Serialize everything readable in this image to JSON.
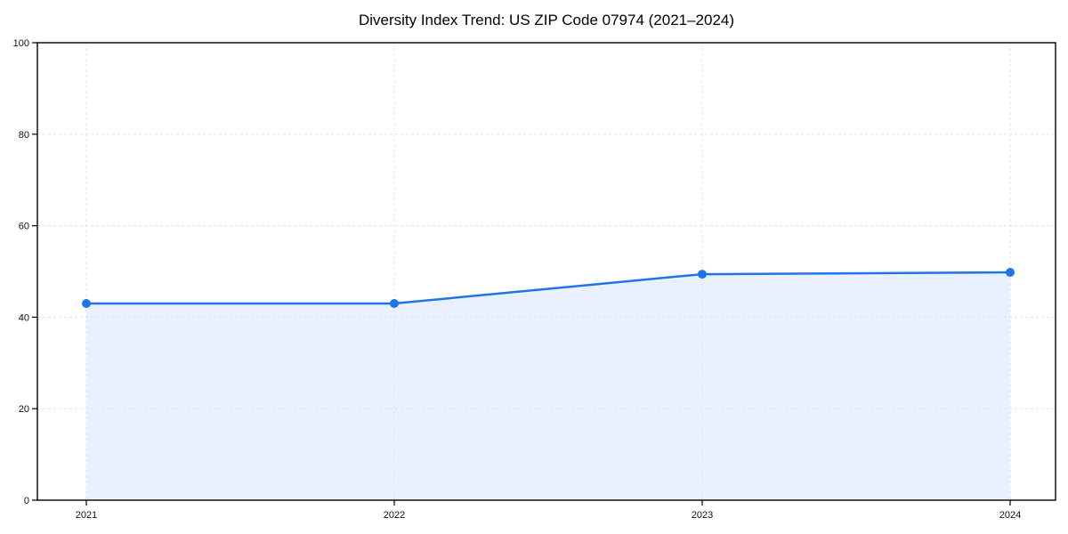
{
  "chart_data": {
    "type": "area",
    "title": "Diversity Index Trend: US ZIP Code 07974 (2021–2024)",
    "x": [
      "2021",
      "2022",
      "2023",
      "2024"
    ],
    "series": [
      {
        "name": "Diversity Index",
        "values": [
          43,
          43,
          49.4,
          49.8
        ]
      }
    ],
    "xlabel": "",
    "ylabel": "",
    "ylim": [
      0,
      100
    ],
    "yticks": [
      0,
      20,
      40,
      60,
      80,
      100
    ],
    "grid": "dashed",
    "legend": "none",
    "marker": "circle",
    "colors": {
      "line": "#2173e8",
      "fill": "#2173e8",
      "fill_opacity": 0.1,
      "grid": "#e3e3e3",
      "spine": "#000000",
      "text": "#111111",
      "background": "#ffffff"
    }
  }
}
